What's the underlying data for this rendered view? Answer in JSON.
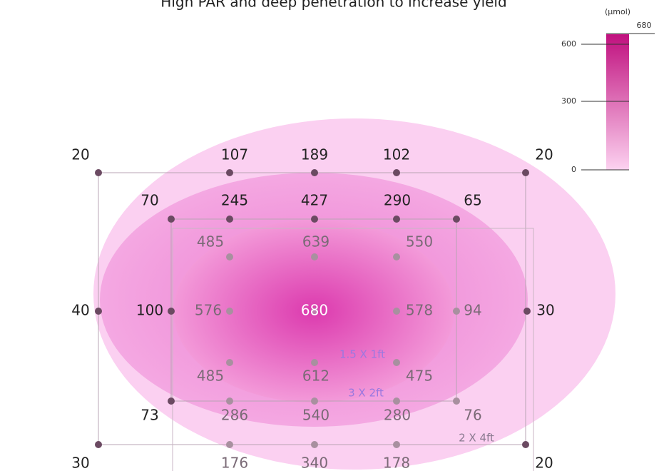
{
  "title": "High PAR and deep penetration to increase yield",
  "legend": {
    "unit": "(μmol)",
    "max_label": "680",
    "ticks": [
      "600",
      "300",
      "0"
    ]
  },
  "points": [
    [
      20,
      107,
      189,
      102,
      20
    ],
    [
      70,
      245,
      427,
      290,
      65
    ],
    [
      485,
      639,
      550
    ],
    [
      40,
      100,
      576,
      680,
      578,
      94,
      30
    ],
    [
      485,
      612,
      475
    ],
    [
      73,
      286,
      540,
      280,
      76
    ],
    [
      30,
      176,
      340,
      178,
      20
    ]
  ],
  "areas": [
    "1.5 X 1ft",
    "3 X 2ft",
    "2 X 4ft"
  ]
}
